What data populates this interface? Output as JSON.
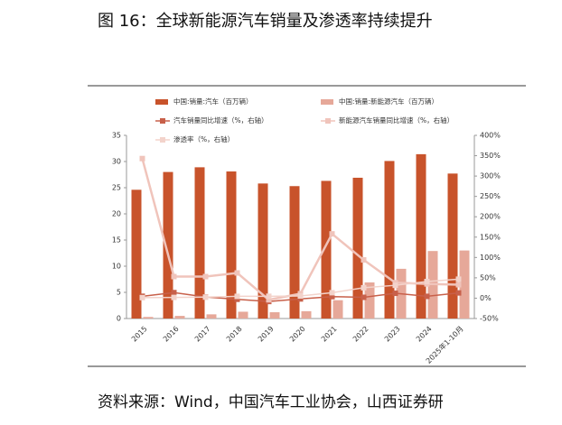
{
  "chart_data": {
    "type": "bar",
    "title": "图 16：全球新能源汽车销量及渗透率持续提升",
    "source": "资料来源：Wind，中国汽车工业协会，山西证券研",
    "categories": [
      "2015",
      "2016",
      "2017",
      "2018",
      "2019",
      "2020",
      "2021",
      "2022",
      "2023",
      "2024",
      "2025年1-10月"
    ],
    "series": [
      {
        "name": "中国:销量:汽车（百万辆）",
        "type": "bar",
        "color": "#c8532b",
        "values": [
          24.6,
          28.0,
          28.9,
          28.1,
          25.8,
          25.3,
          26.3,
          26.9,
          30.1,
          31.4,
          27.7
        ]
      },
      {
        "name": "中国:销量:新能源汽车（百万辆）",
        "type": "bar",
        "color": "#e6a899",
        "values": [
          0.3,
          0.5,
          0.8,
          1.3,
          1.2,
          1.4,
          3.5,
          6.9,
          9.5,
          12.9,
          13.0
        ]
      },
      {
        "name": "汽车销量同比增速（%，右轴）",
        "type": "line",
        "axis": "y2",
        "color": "#c8604a",
        "values": [
          4.7,
          13.7,
          3.0,
          -2.8,
          -8.2,
          -1.9,
          3.8,
          2.1,
          12.0,
          4.5,
          12.9
        ]
      },
      {
        "name": "新能源汽车销量同比增速（%，右轴）",
        "type": "line",
        "axis": "y2",
        "color": "#f0c4bb",
        "values": [
          343,
          53,
          53,
          62,
          -4,
          11,
          158,
          94,
          38,
          35,
          33
        ]
      },
      {
        "name": "渗透率（%，右轴）",
        "type": "line",
        "axis": "y2",
        "color": "#f3d3cb",
        "values": [
          1.3,
          1.8,
          2.7,
          4.5,
          4.7,
          5.4,
          13.4,
          25.6,
          31.6,
          40.9,
          46.7
        ]
      }
    ],
    "ylim": [
      0,
      35
    ],
    "yticks": [
      0,
      5,
      10,
      15,
      20,
      25,
      30,
      35
    ],
    "y2lim": [
      -50,
      400
    ],
    "y2ticks": [
      {
        "value": -50,
        "label": "-50%"
      },
      {
        "value": 0,
        "label": "0%"
      },
      {
        "value": 50,
        "label": "50%"
      },
      {
        "value": 100,
        "label": "100%"
      },
      {
        "value": 150,
        "label": "150%"
      },
      {
        "value": 200,
        "label": "200%"
      },
      {
        "value": 250,
        "label": "250%"
      },
      {
        "value": 300,
        "label": "300%"
      },
      {
        "value": 350,
        "label": "350%"
      },
      {
        "value": 400,
        "label": "400%"
      }
    ]
  }
}
